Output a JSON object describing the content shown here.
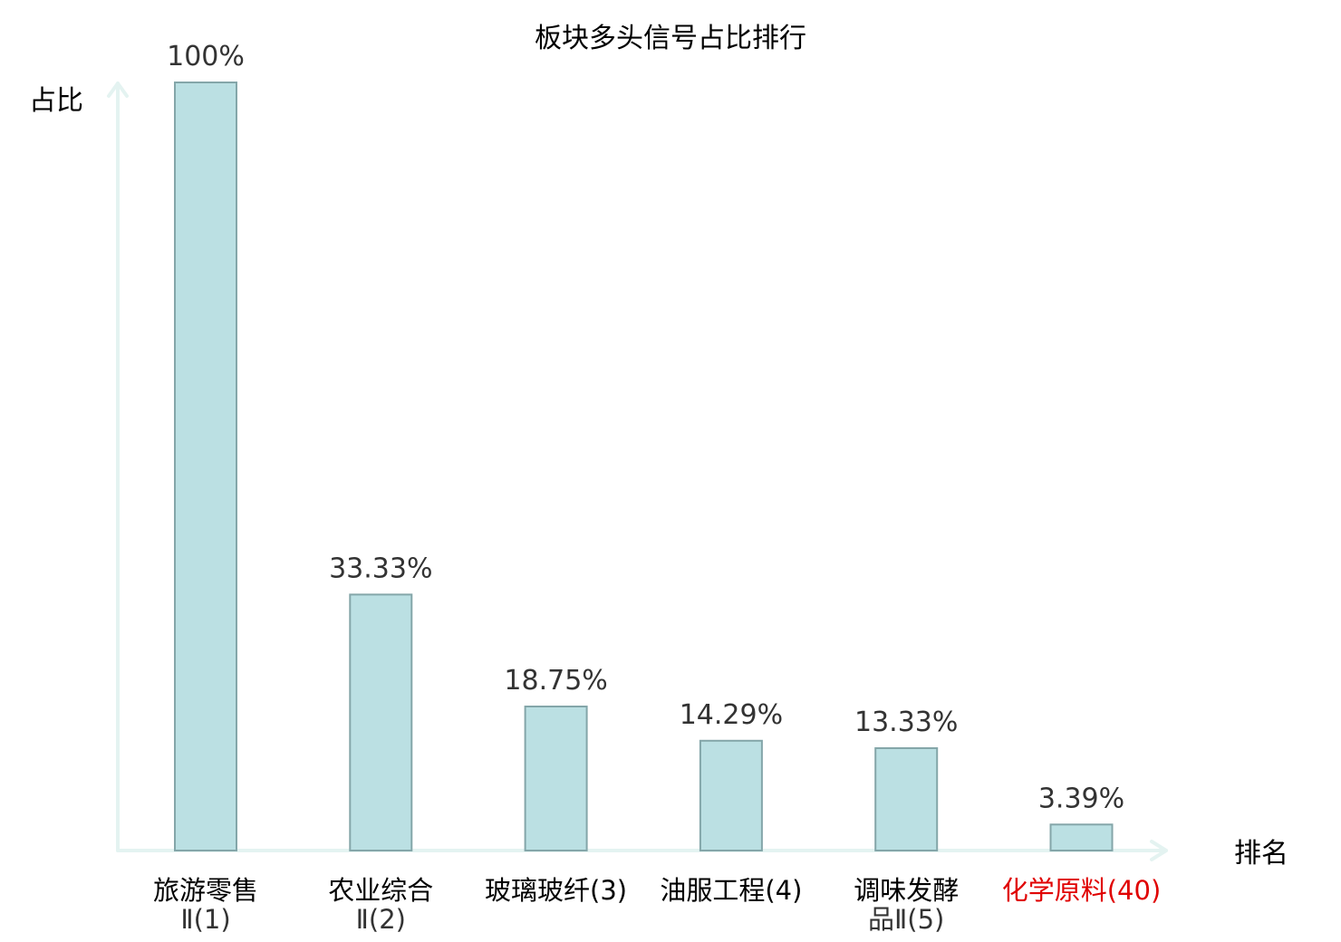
{
  "chart_data": {
    "type": "bar",
    "title": "板块多头信号占比排行",
    "ylabel": "占比",
    "xlabel": "排名",
    "ylim": [
      0,
      100
    ],
    "grid": false,
    "categories": [
      {
        "lines": [
          "旅游零售",
          "Ⅱ(1)"
        ],
        "highlight": false
      },
      {
        "lines": [
          "农业综合",
          "Ⅱ(2)"
        ],
        "highlight": false
      },
      {
        "lines": [
          "玻璃玻纤(3)"
        ],
        "highlight": false
      },
      {
        "lines": [
          "油服工程(4)"
        ],
        "highlight": false
      },
      {
        "lines": [
          "调味发酵",
          "品Ⅱ(5)"
        ],
        "highlight": false
      },
      {
        "lines": [
          "化学原料(40)"
        ],
        "highlight": true
      }
    ],
    "values": [
      100,
      33.33,
      18.75,
      14.29,
      13.33,
      3.39
    ],
    "value_labels": [
      "100%",
      "33.33%",
      "18.75%",
      "14.29%",
      "13.33%",
      "3.39%"
    ],
    "colors": {
      "bar_fill": "#bbe0e3",
      "bar_stroke": "#84a6a9",
      "axis": "#e4f3f1",
      "highlight_text": "#e00000"
    }
  }
}
